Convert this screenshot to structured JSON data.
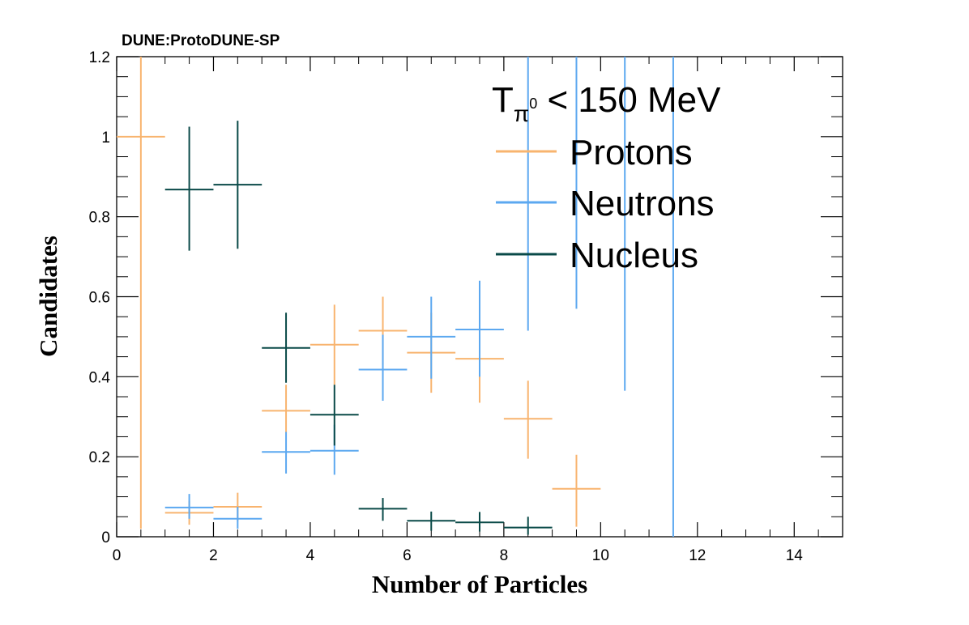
{
  "banner": "DUNE:ProtoDUNE-SP",
  "legend": {
    "header_main": "T",
    "header_sub": "π",
    "header_sup": "0",
    "header_rest": " < 150 MeV",
    "position": "top-right",
    "entries": [
      "Protons",
      "Neutrons",
      "Nucleus"
    ]
  },
  "colors": {
    "Protons": "#f8b46f",
    "Neutrons": "#5ca8f0",
    "Nucleus": "#0a4a48",
    "frame": "#000000"
  },
  "chart_data": {
    "type": "scatter",
    "style": "histogram points with error bars",
    "xlabel": "Number of Particles",
    "ylabel": "Candidates",
    "xlim": [
      0,
      15
    ],
    "ylim": [
      0,
      1.2
    ],
    "x_ticks": [
      0,
      2,
      4,
      6,
      8,
      10,
      12,
      14
    ],
    "y_ticks": [
      0,
      0.2,
      0.4,
      0.6,
      0.8,
      1,
      1.2
    ],
    "x_tick_labels": [
      "0",
      "2",
      "4",
      "6",
      "8",
      "10",
      "12",
      "14"
    ],
    "y_tick_labels": [
      "0",
      "0.2",
      "0.4",
      "0.6",
      "0.8",
      "1",
      "1.2"
    ],
    "grid": false,
    "series": [
      {
        "name": "Protons",
        "points": [
          {
            "x": 0.5,
            "y": 1.0,
            "lo": 0.02,
            "hi": 1.2
          },
          {
            "x": 1.5,
            "y": 0.06,
            "lo": 0.03,
            "hi": 0.09
          },
          {
            "x": 2.5,
            "y": 0.075,
            "lo": 0.04,
            "hi": 0.11
          },
          {
            "x": 3.5,
            "y": 0.315,
            "lo": 0.26,
            "hi": 0.38
          },
          {
            "x": 4.5,
            "y": 0.48,
            "lo": 0.38,
            "hi": 0.58
          },
          {
            "x": 5.5,
            "y": 0.515,
            "lo": 0.43,
            "hi": 0.6
          },
          {
            "x": 6.5,
            "y": 0.46,
            "lo": 0.36,
            "hi": 0.56
          },
          {
            "x": 7.5,
            "y": 0.445,
            "lo": 0.335,
            "hi": 0.56
          },
          {
            "x": 8.5,
            "y": 0.295,
            "lo": 0.195,
            "hi": 0.39
          },
          {
            "x": 9.5,
            "y": 0.12,
            "lo": 0.025,
            "hi": 0.205
          }
        ]
      },
      {
        "name": "Neutrons",
        "points": [
          {
            "x": 1.5,
            "y": 0.073,
            "lo": 0.045,
            "hi": 0.107
          },
          {
            "x": 2.5,
            "y": 0.045,
            "lo": 0.02,
            "hi": 0.075
          },
          {
            "x": 3.5,
            "y": 0.212,
            "lo": 0.158,
            "hi": 0.262
          },
          {
            "x": 4.5,
            "y": 0.215,
            "lo": 0.155,
            "hi": 0.28
          },
          {
            "x": 5.5,
            "y": 0.418,
            "lo": 0.34,
            "hi": 0.505
          },
          {
            "x": 6.5,
            "y": 0.5,
            "lo": 0.395,
            "hi": 0.6
          },
          {
            "x": 7.5,
            "y": 0.518,
            "lo": 0.4,
            "hi": 0.64
          },
          {
            "x": 8.5,
            "y": 0.8,
            "lo": 0.515,
            "hi": 1.2
          },
          {
            "x": 9.5,
            "y": 1.0,
            "lo": 0.57,
            "hi": 1.2
          },
          {
            "x": 10.5,
            "y": 1.0,
            "lo": 0.365,
            "hi": 1.2
          },
          {
            "x": 11.5,
            "y": 1.0,
            "lo": 0.0,
            "hi": 1.2
          }
        ]
      },
      {
        "name": "Nucleus",
        "points": [
          {
            "x": 1.5,
            "y": 0.868,
            "lo": 0.715,
            "hi": 1.025
          },
          {
            "x": 2.5,
            "y": 0.88,
            "lo": 0.72,
            "hi": 1.04
          },
          {
            "x": 3.5,
            "y": 0.472,
            "lo": 0.385,
            "hi": 0.56
          },
          {
            "x": 4.5,
            "y": 0.305,
            "lo": 0.228,
            "hi": 0.38
          },
          {
            "x": 5.5,
            "y": 0.07,
            "lo": 0.04,
            "hi": 0.097
          },
          {
            "x": 6.5,
            "y": 0.04,
            "lo": 0.015,
            "hi": 0.063
          },
          {
            "x": 7.5,
            "y": 0.036,
            "lo": 0.013,
            "hi": 0.062
          },
          {
            "x": 8.5,
            "y": 0.023,
            "lo": 0.005,
            "hi": 0.05
          }
        ]
      }
    ]
  }
}
